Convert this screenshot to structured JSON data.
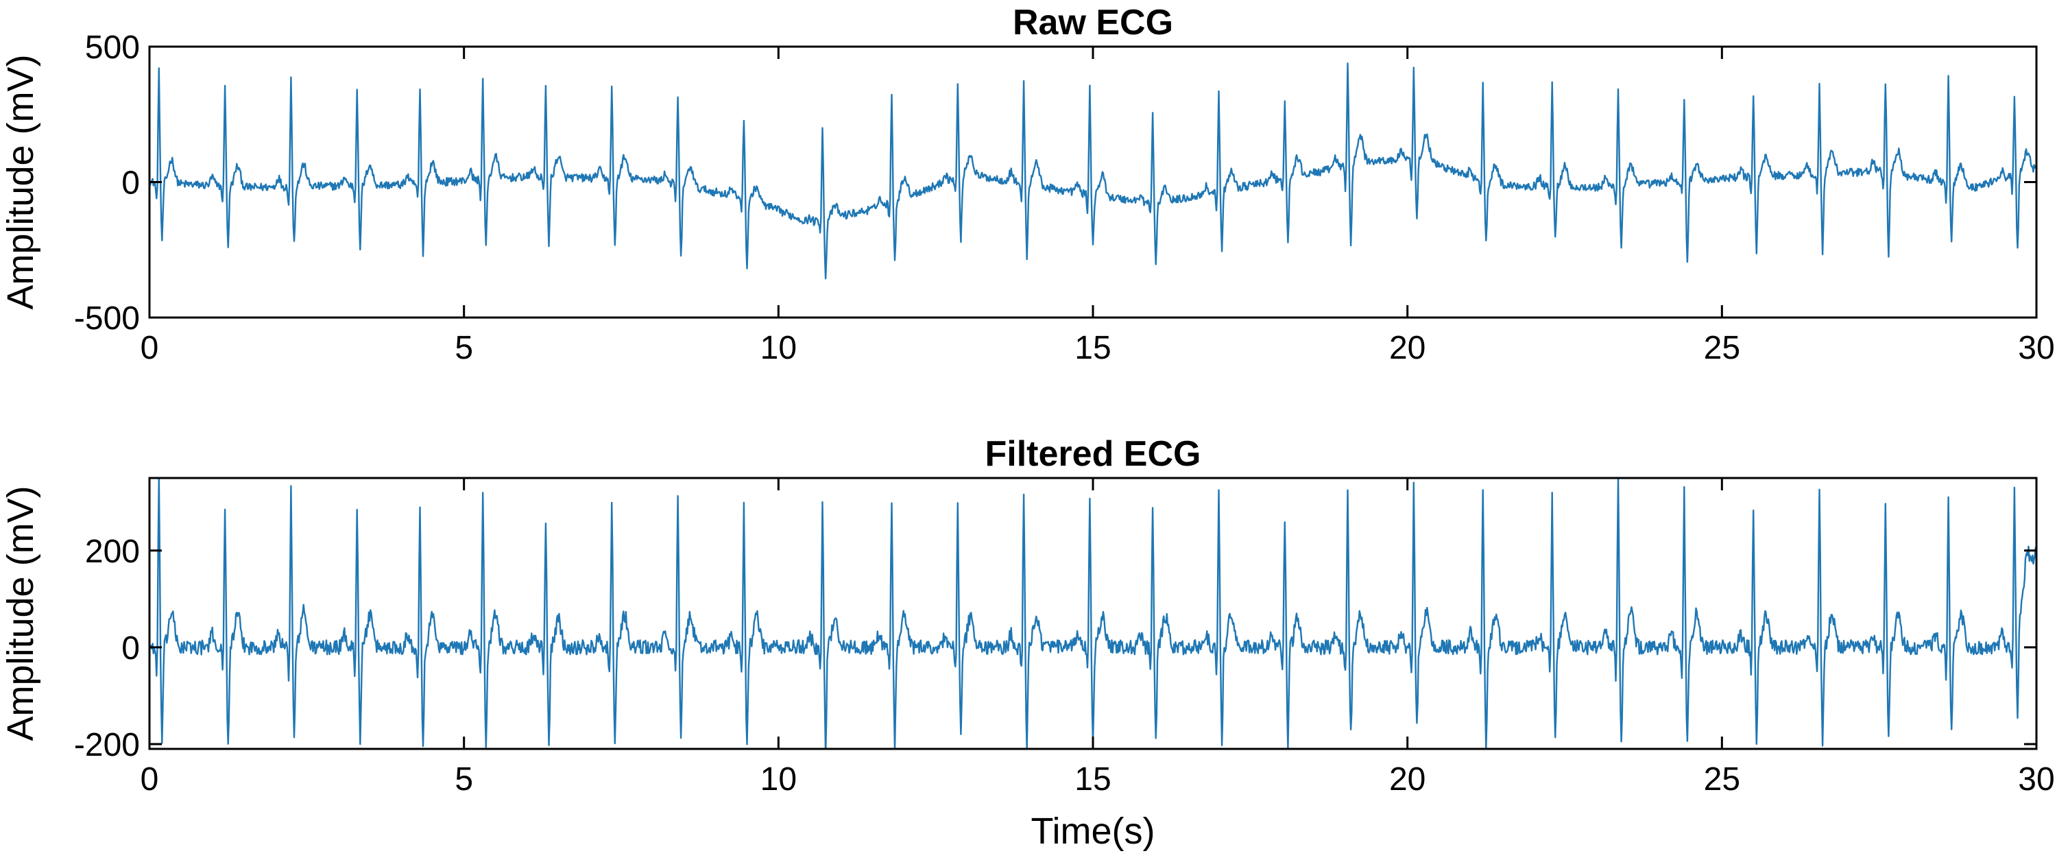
{
  "chart_data": [
    {
      "type": "line",
      "title": "Raw ECG",
      "xlabel": "",
      "ylabel": "Amplitude (mV)",
      "xlim": [
        0,
        30
      ],
      "ylim": [
        -500,
        500
      ],
      "xticks": [
        0,
        5,
        10,
        15,
        20,
        25,
        30
      ],
      "yticks": [
        -500,
        0,
        500
      ],
      "grid": false,
      "color": "#1f77b4",
      "sample_rate_hz": 80,
      "beats": [
        {
          "t": 0.15,
          "r": 400,
          "s": -220,
          "base": -10
        },
        {
          "t": 1.2,
          "r": 350,
          "s": -245,
          "base": -30
        },
        {
          "t": 2.25,
          "r": 370,
          "s": -235,
          "base": -30
        },
        {
          "t": 3.3,
          "r": 345,
          "s": -250,
          "base": -20
        },
        {
          "t": 4.3,
          "r": 340,
          "s": -265,
          "base": -10
        },
        {
          "t": 5.3,
          "r": 370,
          "s": -245,
          "base": 0
        },
        {
          "t": 6.3,
          "r": 350,
          "s": -240,
          "base": 10
        },
        {
          "t": 7.35,
          "r": 355,
          "s": -235,
          "base": 20
        },
        {
          "t": 8.4,
          "r": 335,
          "s": -265,
          "base": 10
        },
        {
          "t": 9.45,
          "r": 250,
          "s": -300,
          "base": -50
        },
        {
          "t": 10.7,
          "r": 190,
          "s": -370,
          "base": -160
        },
        {
          "t": 11.8,
          "r": 350,
          "s": -270,
          "base": -60
        },
        {
          "t": 12.85,
          "r": 330,
          "s": -250,
          "base": -10
        },
        {
          "t": 13.9,
          "r": 400,
          "s": -235,
          "base": 30
        },
        {
          "t": 14.95,
          "r": 345,
          "s": -240,
          "base": -50
        },
        {
          "t": 15.95,
          "r": 230,
          "s": -325,
          "base": -100
        },
        {
          "t": 17.0,
          "r": 320,
          "s": -250,
          "base": -40
        },
        {
          "t": 18.05,
          "r": 310,
          "s": -240,
          "base": 10
        },
        {
          "t": 19.05,
          "r": 470,
          "s": -195,
          "base": 90
        },
        {
          "t": 20.1,
          "r": 440,
          "s": -120,
          "base": 110
        },
        {
          "t": 21.2,
          "r": 340,
          "s": -230,
          "base": -20
        },
        {
          "t": 22.3,
          "r": 360,
          "s": -235,
          "base": -40
        },
        {
          "t": 23.35,
          "r": 340,
          "s": -245,
          "base": -20
        },
        {
          "t": 24.4,
          "r": 270,
          "s": -315,
          "base": -20
        },
        {
          "t": 25.5,
          "r": 335,
          "s": -250,
          "base": 30
        },
        {
          "t": 26.55,
          "r": 360,
          "s": -245,
          "base": 40
        },
        {
          "t": 27.6,
          "r": 390,
          "s": -250,
          "base": 50
        },
        {
          "t": 28.6,
          "r": 355,
          "s": -240,
          "base": -30
        },
        {
          "t": 29.65,
          "r": 325,
          "s": -250,
          "base": 30
        }
      ],
      "baseline_wander": [
        [
          0,
          0
        ],
        [
          1.5,
          -20
        ],
        [
          4,
          -10
        ],
        [
          6,
          20
        ],
        [
          8,
          10
        ],
        [
          9.5,
          -60
        ],
        [
          10.5,
          -150
        ],
        [
          11.5,
          -100
        ],
        [
          13,
          30
        ],
        [
          14.5,
          -30
        ],
        [
          16,
          -80
        ],
        [
          18,
          10
        ],
        [
          19.5,
          80
        ],
        [
          20.3,
          80
        ],
        [
          21.3,
          -10
        ],
        [
          23,
          -20
        ],
        [
          25.5,
          20
        ],
        [
          27.5,
          40
        ],
        [
          29,
          -20
        ],
        [
          30,
          50
        ]
      ]
    },
    {
      "type": "line",
      "title": "Filtered ECG",
      "xlabel": "Time(s)",
      "ylabel": "Amplitude (mV)",
      "xlim": [
        0,
        30
      ],
      "ylim": [
        -210,
        350
      ],
      "xticks": [
        0,
        5,
        10,
        15,
        20,
        25,
        30
      ],
      "yticks": [
        -200,
        0,
        200
      ],
      "grid": false,
      "color": "#1f77b4",
      "sample_rate_hz": 80,
      "beats": [
        {
          "t": 0.15,
          "r": 335,
          "s": -200,
          "base": -5
        },
        {
          "t": 1.2,
          "r": 300,
          "s": -210,
          "base": 0
        },
        {
          "t": 2.25,
          "r": 340,
          "s": -190,
          "base": 0
        },
        {
          "t": 3.3,
          "r": 300,
          "s": -190,
          "base": 0
        },
        {
          "t": 4.3,
          "r": 300,
          "s": -205,
          "base": 0
        },
        {
          "t": 5.3,
          "r": 335,
          "s": -200,
          "base": 0
        },
        {
          "t": 6.3,
          "r": 260,
          "s": -200,
          "base": 0
        },
        {
          "t": 7.35,
          "r": 310,
          "s": -195,
          "base": 0
        },
        {
          "t": 8.4,
          "r": 310,
          "s": -200,
          "base": 0
        },
        {
          "t": 9.45,
          "r": 290,
          "s": -200,
          "base": 0
        },
        {
          "t": 10.7,
          "r": 290,
          "s": -210,
          "base": 0
        },
        {
          "t": 11.8,
          "r": 310,
          "s": -200,
          "base": 0
        },
        {
          "t": 12.85,
          "r": 290,
          "s": -190,
          "base": 0
        },
        {
          "t": 13.9,
          "r": 310,
          "s": -200,
          "base": 0
        },
        {
          "t": 14.95,
          "r": 310,
          "s": -205,
          "base": 0
        },
        {
          "t": 15.95,
          "r": 290,
          "s": -200,
          "base": 0
        },
        {
          "t": 17.0,
          "r": 320,
          "s": -190,
          "base": 0
        },
        {
          "t": 18.05,
          "r": 270,
          "s": -200,
          "base": 0
        },
        {
          "t": 19.05,
          "r": 330,
          "s": -180,
          "base": 0
        },
        {
          "t": 20.1,
          "r": 330,
          "s": -160,
          "base": 0
        },
        {
          "t": 21.2,
          "r": 320,
          "s": -200,
          "base": 0
        },
        {
          "t": 22.3,
          "r": 310,
          "s": -185,
          "base": 0
        },
        {
          "t": 23.35,
          "r": 345,
          "s": -200,
          "base": 0
        },
        {
          "t": 24.4,
          "r": 320,
          "s": -205,
          "base": 0
        },
        {
          "t": 25.5,
          "r": 290,
          "s": -200,
          "base": 0
        },
        {
          "t": 26.55,
          "r": 320,
          "s": -190,
          "base": 0
        },
        {
          "t": 27.6,
          "r": 300,
          "s": -195,
          "base": 0
        },
        {
          "t": 28.6,
          "r": 320,
          "s": -185,
          "base": 0
        },
        {
          "t": 29.65,
          "r": 300,
          "s": -190,
          "base": 0
        }
      ],
      "baseline_wander": [
        [
          0,
          0
        ],
        [
          29.6,
          0
        ],
        [
          30,
          200
        ]
      ]
    }
  ]
}
